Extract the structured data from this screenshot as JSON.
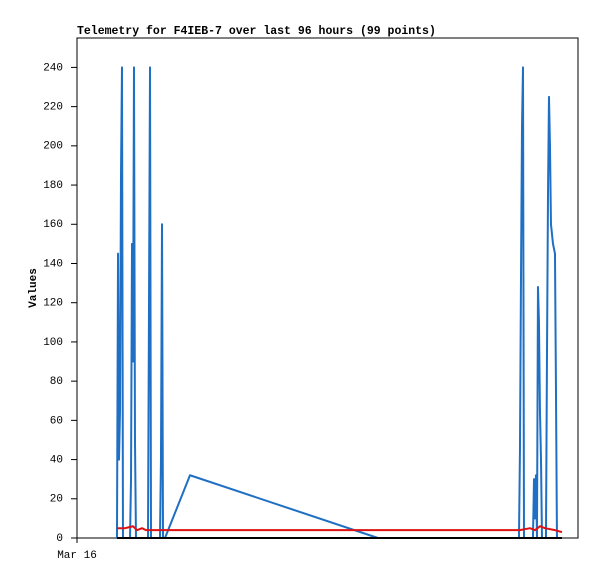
{
  "chart_data": {
    "type": "line",
    "title": "Telemetry for F4IEB-7 over last 96 hours (99 points)",
    "y_label": "Values",
    "xlim": [
      0,
      96
    ],
    "xticks": [
      {
        "value": 0,
        "label": "Mar 16"
      }
    ],
    "ylim": [
      0,
      255
    ],
    "yticks": [
      0,
      20,
      40,
      60,
      80,
      100,
      120,
      140,
      160,
      180,
      200,
      220,
      240
    ],
    "grid": false,
    "series": [
      {
        "color": "#1f6fc4",
        "x": [
          7.66,
          7.86,
          8.05,
          8.24,
          8.43,
          8.62,
          8.81,
          10.16,
          10.35,
          10.54,
          10.73,
          10.92,
          11.11,
          11.3,
          13.6,
          13.8,
          13.99,
          14.18,
          15.9,
          16.09,
          16.29,
          16.48,
          16.86,
          21.65,
          57.67,
          84.69,
          84.88,
          85.07,
          85.27,
          85.46,
          85.65,
          87.37,
          87.57,
          87.76,
          87.95,
          88.14,
          88.33,
          88.52,
          88.71,
          88.91,
          89.1,
          89.86,
          90.05,
          90.25,
          90.44,
          90.63,
          90.82,
          91.21,
          91.59,
          91.78,
          91.97
        ],
        "values": [
          0,
          145,
          40,
          65,
          185,
          240,
          0,
          0,
          30,
          150,
          90,
          240,
          50,
          0,
          0,
          120,
          240,
          0,
          0,
          40,
          160,
          0,
          0,
          32,
          0,
          0,
          45,
          130,
          210,
          240,
          0,
          0,
          30,
          10,
          32,
          0,
          128,
          110,
          65,
          40,
          0,
          0,
          90,
          175,
          225,
          200,
          160,
          150,
          145,
          75,
          0
        ]
      },
      {
        "color": "#dd1111",
        "x": [
          7.66,
          9.2,
          10.73,
          11.5,
          12.45,
          13.22,
          15.9,
          84.88,
          86.8,
          87.76,
          88.71,
          89.67,
          91.59,
          92.93
        ],
        "values": [
          5,
          5,
          6,
          4,
          5,
          4,
          4,
          4,
          5,
          4,
          6,
          5,
          4,
          3
        ]
      },
      {
        "color": "#000000",
        "x": [
          7.66,
          92.93
        ],
        "values": [
          0,
          0
        ]
      }
    ]
  }
}
